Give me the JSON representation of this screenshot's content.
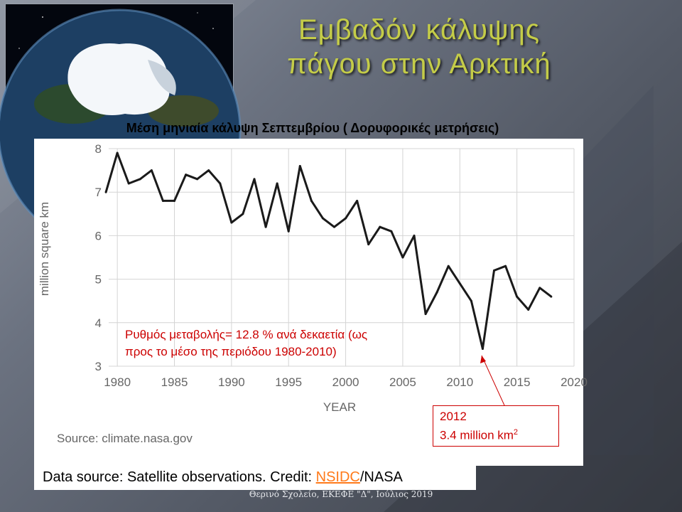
{
  "slide": {
    "title_line1": "Εμβαδόν κάλυψης",
    "title_line2": "πάγου στην Αρκτική",
    "chart_title": "Μέση μηνιαία κάλυψη Σεπτεμβρίου (  Δορυφορικές μετρήσεις)",
    "annotation_line1": "Ρυθμός μεταβολής= 12.8 % ανά δεκαετία (ως",
    "annotation_line2": "προς το μέσο της περιόδου 1980-2010)",
    "callout_year": "2012",
    "callout_value": "3.4 million km",
    "callout_sup": "2",
    "chart_source": "Source: climate.nasa.gov",
    "credit_prefix": "Data source: Satellite observations. Credit: ",
    "credit_link": "NSIDC",
    "credit_suffix": "/NASA",
    "footer": "Θερινό Σχολείο, ΕΚΕΦΕ \"Δ\", Ιούλιος 2019",
    "colors": {
      "title": "#c4cc48",
      "annotation": "#cc0000",
      "link": "#ff7a1a",
      "series": "#1a1a1a"
    },
    "image": "arctic-globe-icon"
  },
  "chart_data": {
    "type": "line",
    "title": "",
    "xlabel": "YEAR",
    "ylabel": "million square km",
    "xlim": [
      1978,
      2020
    ],
    "ylim": [
      3,
      8
    ],
    "xticks": [
      1980,
      1985,
      1990,
      1995,
      2000,
      2005,
      2010,
      2015,
      2020
    ],
    "yticks": [
      3,
      4,
      5,
      6,
      7,
      8
    ],
    "grid": true,
    "legend": "none",
    "series": [
      {
        "x": [
          1979,
          1980,
          1981,
          1982,
          1983,
          1984,
          1985,
          1986,
          1987,
          1988,
          1989,
          1990,
          1991,
          1992,
          1993,
          1994,
          1995,
          1996,
          1997,
          1998,
          1999,
          2000,
          2001,
          2002,
          2003,
          2004,
          2005,
          2006,
          2007,
          2008,
          2009,
          2010,
          2011,
          2012,
          2013,
          2014,
          2015,
          2016,
          2017,
          2018
        ],
        "y": [
          7.0,
          7.9,
          7.2,
          7.3,
          7.5,
          6.8,
          6.8,
          7.4,
          7.3,
          7.5,
          7.2,
          6.3,
          6.5,
          7.3,
          6.2,
          7.2,
          6.1,
          7.6,
          6.8,
          6.4,
          6.2,
          6.4,
          6.8,
          5.8,
          6.2,
          6.1,
          5.5,
          6.0,
          4.2,
          4.7,
          5.3,
          4.9,
          4.5,
          3.4,
          5.2,
          5.3,
          4.6,
          4.3,
          4.8,
          4.6
        ]
      }
    ]
  }
}
